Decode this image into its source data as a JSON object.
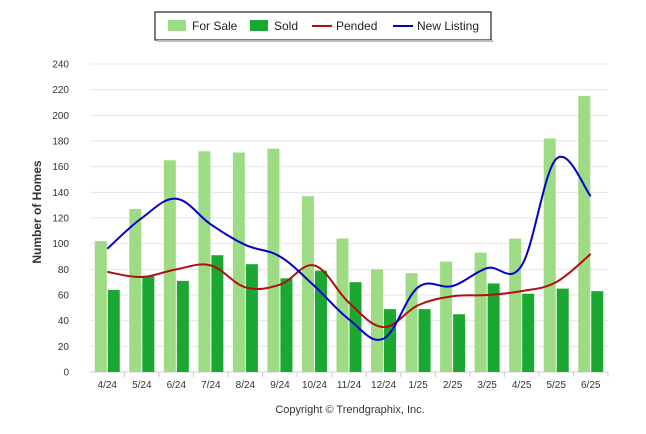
{
  "chart_data": {
    "type": "bar",
    "categories": [
      "4/24",
      "5/24",
      "6/24",
      "7/24",
      "8/24",
      "9/24",
      "10/24",
      "11/24",
      "12/24",
      "1/25",
      "2/25",
      "3/25",
      "4/25",
      "5/25",
      "6/25"
    ],
    "ylabel": "Number of Homes",
    "ylim": [
      0,
      240
    ],
    "yticks": [
      0,
      20,
      40,
      60,
      80,
      100,
      120,
      140,
      160,
      180,
      200,
      220,
      240
    ],
    "grid": true,
    "legend_position": "top-center",
    "series": [
      {
        "name": "For Sale",
        "kind": "bar",
        "color": "#9ddc84",
        "values": [
          102,
          127,
          165,
          172,
          171,
          174,
          137,
          104,
          80,
          77,
          86,
          93,
          104,
          182,
          215
        ]
      },
      {
        "name": "Sold",
        "kind": "bar",
        "color": "#1aa832",
        "values": [
          64,
          75,
          71,
          91,
          84,
          73,
          79,
          70,
          49,
          49,
          45,
          69,
          61,
          65,
          63
        ]
      },
      {
        "name": "Pended",
        "kind": "line",
        "color": "#b01010",
        "values": [
          78,
          74,
          80,
          83,
          66,
          68,
          83,
          54,
          35,
          52,
          59,
          60,
          63,
          70,
          92
        ]
      },
      {
        "name": "New Listing",
        "kind": "line",
        "color": "#0000cc",
        "values": [
          96,
          120,
          135,
          115,
          99,
          90,
          67,
          41,
          26,
          66,
          67,
          81,
          83,
          166,
          137
        ]
      }
    ]
  },
  "footer": {
    "copyright": "Copyright © Trendgraphix, Inc."
  }
}
